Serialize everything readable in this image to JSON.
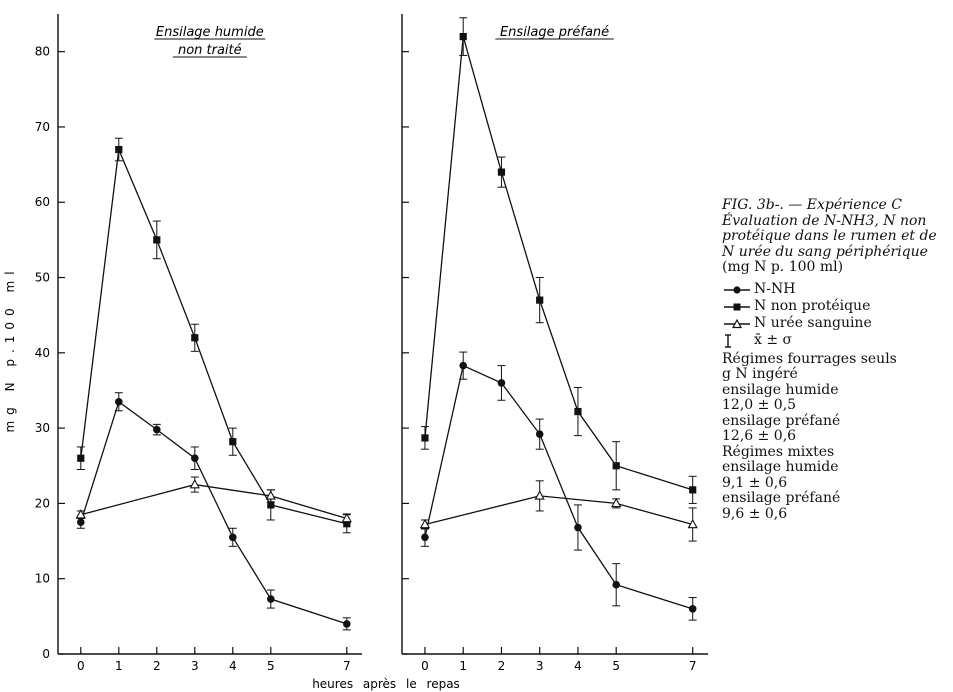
{
  "figure": {
    "caption_title": "FIG. 3b-. — Expérience C Évaluation de N-NH3, N non protéique dans le rumen et de N urée du sang périphérique",
    "caption_unit": "(mg N p. 100 ml)",
    "legend": [
      {
        "symbol": "circle-filled",
        "label": "N-NH"
      },
      {
        "symbol": "square-filled",
        "label": "N non protéique"
      },
      {
        "symbol": "triangle-open",
        "label": "N urée sanguine"
      },
      {
        "symbol": "errorbar",
        "label": "x̄ ± σ"
      }
    ],
    "notes": [
      "Régimes fourrages seuls",
      "g N ingéré",
      "ensilage humide",
      "12,0 ± 0,5",
      "ensilage préfané",
      "12,6 ± 0,6",
      "Régimes mixtes",
      "ensilage humide",
      "9,1 ± 0,6",
      "ensilage préfané",
      "9,6 ± 0,6"
    ],
    "colors": {
      "ink": "#111111",
      "background": "#ffffff"
    }
  },
  "chart_data": [
    {
      "type": "line",
      "title": "Ensilage humide non traité",
      "title_lines": [
        "Ensilage humide",
        "non traité"
      ],
      "ylabel": "mg N p.100 ml",
      "xlabel": "heures après le repas",
      "ylim": [
        0,
        85
      ],
      "y_ticks": [
        0,
        10,
        20,
        30,
        40,
        50,
        60,
        70,
        80
      ],
      "x_ticks": [
        0,
        1,
        2,
        3,
        4,
        5,
        7
      ],
      "xlim": [
        -0.6,
        7.4
      ],
      "grid": false,
      "series": [
        {
          "marker": "square-filled",
          "x": [
            0,
            1,
            2,
            3,
            4,
            5,
            7
          ],
          "y": [
            26,
            67,
            55,
            42,
            28.2,
            19.8,
            17.3
          ],
          "err": [
            1.5,
            1.5,
            2.5,
            1.8,
            1.8,
            2.0,
            1.2
          ]
        },
        {
          "marker": "circle-filled",
          "x": [
            0,
            1,
            2,
            3,
            4,
            5,
            7
          ],
          "y": [
            17.5,
            33.5,
            29.8,
            26,
            15.5,
            7.3,
            4
          ],
          "err": [
            0.8,
            1.2,
            0.7,
            1.5,
            1.2,
            1.2,
            0.8
          ]
        },
        {
          "marker": "triangle-open",
          "x": [
            0,
            3,
            5,
            7
          ],
          "y": [
            18.5,
            22.5,
            21,
            18
          ],
          "err": [
            0.5,
            1.0,
            0.8,
            0.6
          ]
        }
      ]
    },
    {
      "type": "line",
      "title": "Ensilage préfané",
      "title_lines": [
        "Ensilage préfané"
      ],
      "ylabel": "",
      "xlabel": "heures après le repas",
      "ylim": [
        0,
        85
      ],
      "y_ticks": [
        0,
        10,
        20,
        30,
        40,
        50,
        60,
        70,
        80
      ],
      "x_ticks": [
        0,
        1,
        2,
        3,
        4,
        5,
        7
      ],
      "xlim": [
        -0.6,
        7.4
      ],
      "grid": false,
      "series": [
        {
          "marker": "square-filled",
          "x": [
            0,
            1,
            2,
            3,
            4,
            5,
            7
          ],
          "y": [
            28.7,
            82,
            64,
            47,
            32.2,
            25,
            21.8
          ],
          "err": [
            1.5,
            2.5,
            2.0,
            3.0,
            3.2,
            3.2,
            1.8
          ]
        },
        {
          "marker": "circle-filled",
          "x": [
            0,
            1,
            2,
            3,
            4,
            5,
            7
          ],
          "y": [
            15.5,
            38.3,
            36,
            29.2,
            16.8,
            9.2,
            6
          ],
          "err": [
            1.2,
            1.8,
            2.3,
            2.0,
            3.0,
            2.8,
            1.5
          ]
        },
        {
          "marker": "triangle-open",
          "x": [
            0,
            3,
            5,
            7
          ],
          "y": [
            17.2,
            21,
            20,
            17.2
          ],
          "err": [
            0.6,
            2.0,
            0.6,
            2.2
          ]
        }
      ]
    }
  ]
}
